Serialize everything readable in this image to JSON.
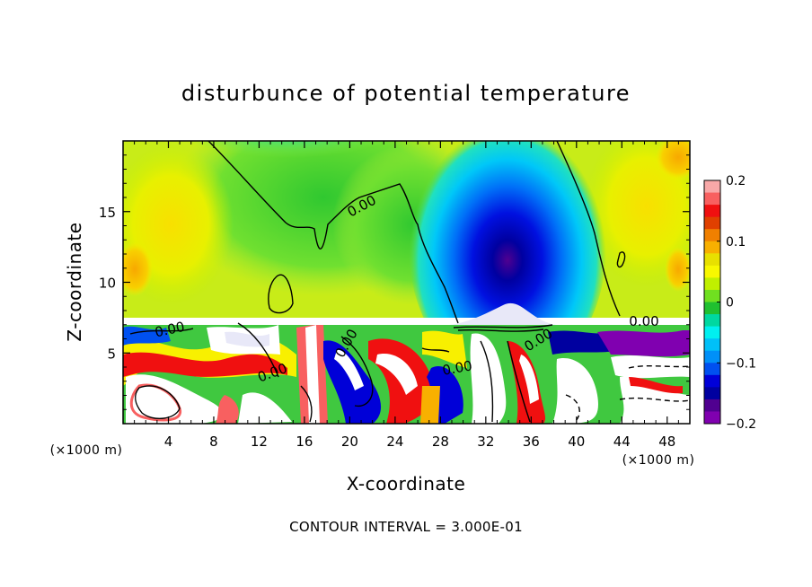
{
  "chart_data": {
    "type": "heatmap",
    "title": "disturbunce of potential temperature",
    "xlabel": "X-coordinate",
    "ylabel": "Z-coordinate",
    "x_unit_label_left": "(×1000 m)",
    "x_unit_label_right": "(×1000 m)",
    "xlim": [
      0,
      50
    ],
    "ylim": [
      0,
      20
    ],
    "x_ticks": [
      4,
      8,
      12,
      16,
      20,
      24,
      28,
      32,
      36,
      40,
      44,
      48
    ],
    "x_tick_labels": [
      "4",
      "8",
      "12",
      "16",
      "20",
      "24",
      "28",
      "32",
      "36",
      "40",
      "44",
      "48"
    ],
    "y_ticks": [
      5,
      10,
      15
    ],
    "y_tick_labels": [
      "5",
      "10",
      "15"
    ],
    "colorbar": {
      "range": [
        -0.2,
        0.2
      ],
      "ticks": [
        0.2,
        0.1,
        0,
        -0.1,
        -0.2
      ],
      "tick_labels": [
        "0.2",
        "0.1",
        "0",
        "−0.1",
        "−0.2"
      ],
      "colors": [
        "#f8a8a8",
        "#f86060",
        "#f01010",
        "#e04000",
        "#f08000",
        "#f8b000",
        "#e8e000",
        "#f8f800",
        "#c0f000",
        "#70e020",
        "#20c030",
        "#00d8a0",
        "#00f0f0",
        "#00c0f8",
        "#0090f8",
        "#0050f0",
        "#0000d8",
        "#0000a0",
        "#500090",
        "#8000b0"
      ]
    },
    "contour_labels": [
      "0.00",
      "0.00",
      "0.00",
      "0.00",
      "0.00",
      "0.00",
      "0.00"
    ],
    "footnote": "CONTOUR INTERVAL = 3.000E-01",
    "grid": false,
    "legend": "right colorbar"
  }
}
